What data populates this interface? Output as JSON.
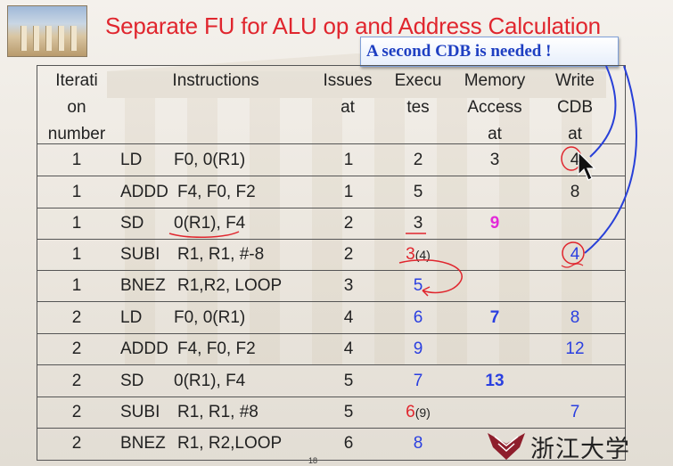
{
  "title": "Separate FU for ALU op and Address Calculation",
  "callout": "A second CDB is needed !",
  "colors": {
    "title": "#e0262e",
    "callout_text": "#1e3fc2",
    "blue": "#2a3fe0",
    "red": "#e0262e",
    "magenta": "#e22ad8",
    "annotation_blue": "#2840d8"
  },
  "headers": {
    "iteration": "Iterati\non\nnumber",
    "instructions": "Instructions",
    "issues": "Issues\nat",
    "executes": "Execu\ntes",
    "memory": "Memory\nAccess\nat",
    "cdb": "Write\nCDB\nat"
  },
  "rows": [
    {
      "iter": "1",
      "op": "LD",
      "args": "F0, 0(R1)",
      "issue": "1",
      "exec": "2",
      "exec_extra": "",
      "mem": "3",
      "cdb": "4",
      "exec_color": "#222",
      "mem_color": "#222",
      "cdb_color": "#222"
    },
    {
      "iter": "1",
      "op": "ADDD",
      "args": "F4, F0, F2",
      "issue": "1",
      "exec": "5",
      "exec_extra": "",
      "mem": "",
      "cdb": "8",
      "exec_color": "#222",
      "mem_color": "#222",
      "cdb_color": "#222"
    },
    {
      "iter": "1",
      "op": "SD",
      "args": "0(R1), F4",
      "issue": "2",
      "exec": "3",
      "exec_extra": "",
      "mem": "9",
      "cdb": "",
      "exec_color": "#222",
      "mem_color": "#e22ad8",
      "cdb_color": "#222"
    },
    {
      "iter": "1",
      "op": "SUBI",
      "args": "R1, R1, #-8",
      "issue": "2",
      "exec": "3",
      "exec_extra": "(4)",
      "mem": "",
      "cdb": "4",
      "exec_color": "#e0262e",
      "mem_color": "#222",
      "cdb_color": "#2a3fe0"
    },
    {
      "iter": "1",
      "op": "BNEZ",
      "args": "R1,R2, LOOP",
      "issue": "3",
      "exec": "5",
      "exec_extra": "",
      "mem": "",
      "cdb": "",
      "exec_color": "#2a3fe0",
      "mem_color": "#222",
      "cdb_color": "#222"
    },
    {
      "iter": "2",
      "op": "LD",
      "args": "F0, 0(R1)",
      "issue": "4",
      "exec": "6",
      "exec_extra": "",
      "mem": "7",
      "cdb": "8",
      "exec_color": "#2a3fe0",
      "mem_color": "#2a3fe0",
      "cdb_color": "#2a3fe0"
    },
    {
      "iter": "2",
      "op": "ADDD",
      "args": "F4, F0, F2",
      "issue": "4",
      "exec": "9",
      "exec_extra": "",
      "mem": "",
      "cdb": "12",
      "exec_color": "#2a3fe0",
      "mem_color": "#222",
      "cdb_color": "#2a3fe0"
    },
    {
      "iter": "2",
      "op": "SD",
      "args": "0(R1), F4",
      "issue": "5",
      "exec": "7",
      "exec_extra": "",
      "mem": "13",
      "cdb": "",
      "exec_color": "#2a3fe0",
      "mem_color": "#2a3fe0",
      "cdb_color": "#222"
    },
    {
      "iter": "2",
      "op": "SUBI",
      "args": "R1, R1, #8",
      "issue": "5",
      "exec": "6",
      "exec_extra": "(9)",
      "mem": "",
      "cdb": "7",
      "exec_color": "#e0262e",
      "mem_color": "#222",
      "cdb_color": "#2a3fe0"
    },
    {
      "iter": "2",
      "op": "BNEZ",
      "args": "R1, R2,LOOP",
      "issue": "6",
      "exec": "8",
      "exec_extra": "",
      "mem": "",
      "cdb": "",
      "exec_color": "#2a3fe0",
      "mem_color": "#222",
      "cdb_color": "#222"
    }
  ],
  "page_number": "18",
  "logo_text": "浙江大学",
  "icons": {
    "logo_photo": "parthenon-photo-icon",
    "university_logo": "zju-emblem-icon",
    "cursor": "mouse-cursor-icon"
  }
}
